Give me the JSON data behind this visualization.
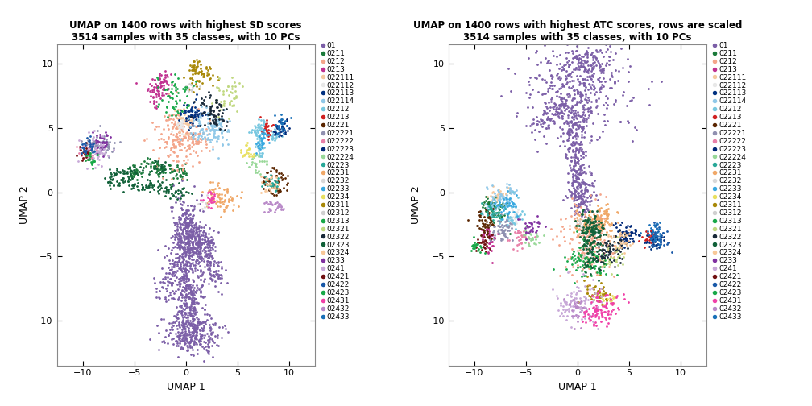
{
  "title1": "UMAP on 1400 rows with highest SD scores\n3514 samples with 35 classes, with 10 PCs",
  "title2": "UMAP on 1400 rows with highest ATC scores, rows are scaled\n3514 samples with 35 classes, with 10 PCs",
  "xlabel": "UMAP 1",
  "ylabel": "UMAP 2",
  "xlim": [
    -12.5,
    12.5
  ],
  "ylim": [
    -13.5,
    11.5
  ],
  "xticks": [
    -10,
    -5,
    0,
    5,
    10
  ],
  "yticks": [
    -10,
    -5,
    0,
    5,
    10
  ],
  "point_size": 4,
  "alpha": 1.0,
  "legend_fontsize": 6.5,
  "title_fontsize": 8.5,
  "axis_label_fontsize": 9,
  "classes": [
    "01",
    "0211",
    "0212",
    "0213",
    "022111",
    "022112",
    "022113",
    "022114",
    "02212",
    "02213",
    "02221",
    "022221",
    "022222",
    "022223",
    "022224",
    "02223",
    "02231",
    "02232",
    "02233",
    "02234",
    "02311",
    "02312",
    "02313",
    "02321",
    "02322",
    "02323",
    "02324",
    "0233",
    "0241",
    "02421",
    "02422",
    "02423",
    "02431",
    "02432",
    "02433"
  ],
  "color_map": {
    "01": "#7B5EA7",
    "0211": "#1A7A3A",
    "0212": "#F4A58A",
    "0213": "#C03090",
    "022111": "#F5C9A0",
    "022112": "#E8E8E8",
    "022113": "#003080",
    "022114": "#90C8E8",
    "02212": "#78C8E0",
    "02213": "#D02020",
    "02221": "#5A2500",
    "022221": "#9090B0",
    "022222": "#E880A8",
    "022223": "#002878",
    "022224": "#98D898",
    "02223": "#28A898",
    "02231": "#F0A868",
    "02232": "#D8D8D8",
    "02233": "#38A8E0",
    "02234": "#E8E060",
    "02311": "#A88808",
    "02312": "#D0D0D0",
    "02313": "#18A848",
    "02321": "#C0D880",
    "02322": "#182838",
    "02323": "#106038",
    "02324": "#F8C898",
    "0233": "#8030A0",
    "0241": "#C8A8D8",
    "02421": "#701010",
    "02422": "#1858A8",
    "02423": "#18A848",
    "02431": "#F040A8",
    "02432": "#B888C8",
    "02433": "#1870B8"
  }
}
